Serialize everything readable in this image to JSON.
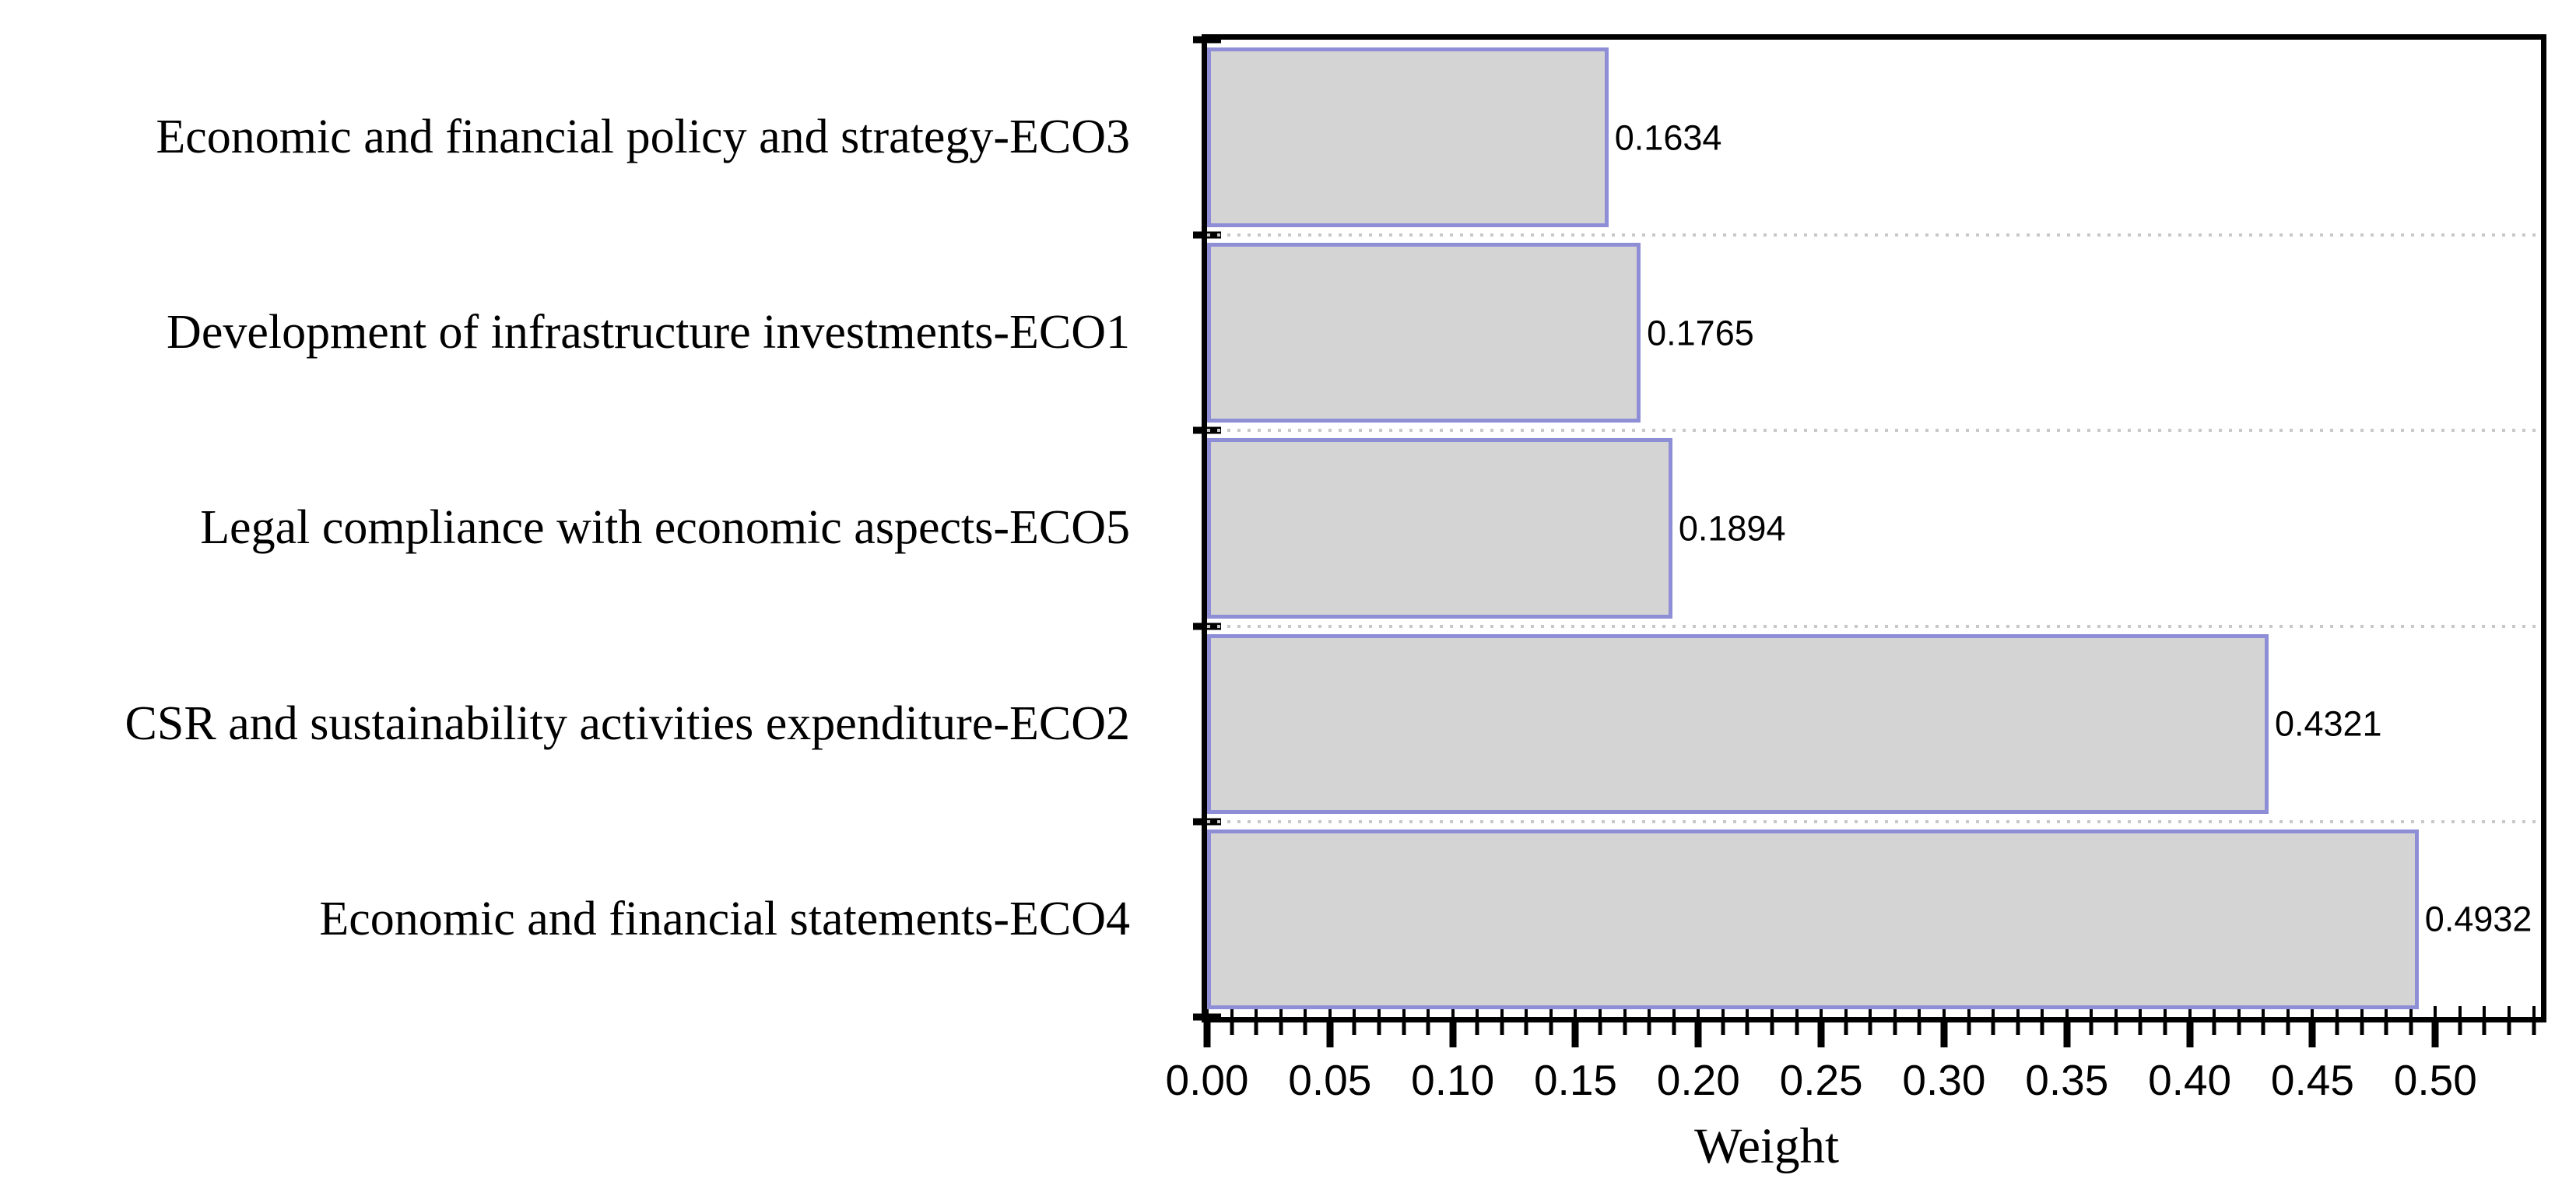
{
  "figure": {
    "background": "#ffffff"
  },
  "chart_data": {
    "type": "bar",
    "orientation": "horizontal",
    "title": "",
    "xlabel": "Weight",
    "ylabel": "",
    "categories": [
      "Economic and financial policy and strategy-ECO3",
      "Development of infrastructure investments-ECO1",
      "Legal compliance with economic aspects-ECO5",
      "CSR and sustainability activities expenditure-ECO2",
      "Economic and financial statements-ECO4"
    ],
    "values": [
      0.1634,
      0.1765,
      0.1894,
      0.4321,
      0.4932
    ],
    "value_labels": [
      "0.1634",
      "0.1765",
      "0.1894",
      "0.4321",
      "0.4932"
    ],
    "xlim": [
      0,
      0.543
    ],
    "x_tick_labels": [
      "0.00",
      "0.05",
      "0.10",
      "0.15",
      "0.20",
      "0.25",
      "0.30",
      "0.35",
      "0.40",
      "0.45",
      "0.50"
    ],
    "x_major_step": 0.05,
    "x_minor_step": 0.01,
    "grid": "dotted horizontal lines at category band boundaries",
    "legend_position": "none",
    "styles": {
      "bar_fill": "#d4d4d4",
      "bar_border": "#8e8ed6",
      "axis_color": "#000000",
      "grid_color": "#c8c8c8",
      "text_color": "#000000"
    }
  }
}
